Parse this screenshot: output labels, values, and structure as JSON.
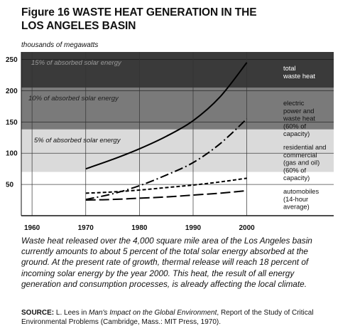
{
  "figure": {
    "title_line1": "Figure 16 WASTE HEAT GENERATION IN THE",
    "title_line2": "LOS ANGELES BASIN",
    "unit_label": "thousands of megawatts"
  },
  "chart_data": {
    "type": "line",
    "title": "Figure 16 WASTE HEAT GENERATION IN THE LOS ANGELES BASIN",
    "ylabel": "thousands of megawatts",
    "xlabel": "",
    "xlim": [
      1958,
      2006
    ],
    "ylim": [
      0,
      262
    ],
    "x_ticks": [
      1960,
      1970,
      1980,
      1990,
      2000
    ],
    "y_ticks": [
      50,
      100,
      150,
      200,
      250
    ],
    "grid": true,
    "bands": [
      {
        "label": "15% of absorbed solar energy",
        "from": 205,
        "to": 262,
        "color": "#3a3a3a",
        "text_color": "#9a9a9a"
      },
      {
        "label": "10% of absorbed solar energy",
        "from": 138,
        "to": 205,
        "color": "#7a7a7a",
        "text_color": "#1e1e1e"
      },
      {
        "label": "5% of absorbed solar energy",
        "from": 70,
        "to": 138,
        "color": "#dadada",
        "text_color": "#111111"
      }
    ],
    "series": [
      {
        "name": "total waste heat",
        "label_lines": [
          "total",
          "waste heat"
        ],
        "style": "solid",
        "x": [
          1970,
          1975,
          1980,
          1985,
          1990,
          1995,
          2000
        ],
        "y": [
          75,
          90,
          107,
          127,
          152,
          190,
          245
        ]
      },
      {
        "name": "electric power and waste heat (60% of capacity)",
        "label_lines": [
          "electric",
          "power and",
          "waste heat",
          "(60% of",
          "capacity)"
        ],
        "style": "dashdot",
        "x": [
          1970,
          1975,
          1980,
          1985,
          1990,
          1995,
          2000
        ],
        "y": [
          26,
          35,
          48,
          65,
          85,
          115,
          155
        ]
      },
      {
        "name": "residential and commercial (gas and oil) (60% of capacity)",
        "label_lines": [
          "residential and",
          "commercial",
          "(gas and oil)",
          "(60% of",
          "capacity)"
        ],
        "style": "shortdash",
        "x": [
          1970,
          1975,
          1980,
          1985,
          1990,
          1995,
          2000
        ],
        "y": [
          36,
          38,
          41,
          45,
          49,
          54,
          60
        ]
      },
      {
        "name": "automobiles (14-hour average)",
        "label_lines": [
          "automobiles",
          "(14-hour",
          "average)"
        ],
        "style": "longdash",
        "x": [
          1970,
          1975,
          1980,
          1985,
          1990,
          1995,
          2000
        ],
        "y": [
          25,
          26,
          28,
          30,
          33,
          36,
          40
        ]
      }
    ]
  },
  "caption": "Waste heat released over the 4,000 square mile area of the Los Angeles basin currently amounts to about 5 percent of the total solar energy absorbed at the ground. At the present rate of growth, thermal release will reach 18 percent of incoming solar energy by the year 2000. This heat, the result of all energy generation and consumption processes, is already affecting the local climate.",
  "source": {
    "label": "SOURCE:",
    "text_before": " L. Lees in ",
    "book": "Man's Impact on the Global Environment",
    "text_after": ", Report of the Study of Critical Environmental Problems (Cambridge, Mass.: MIT Press, 1970)."
  }
}
